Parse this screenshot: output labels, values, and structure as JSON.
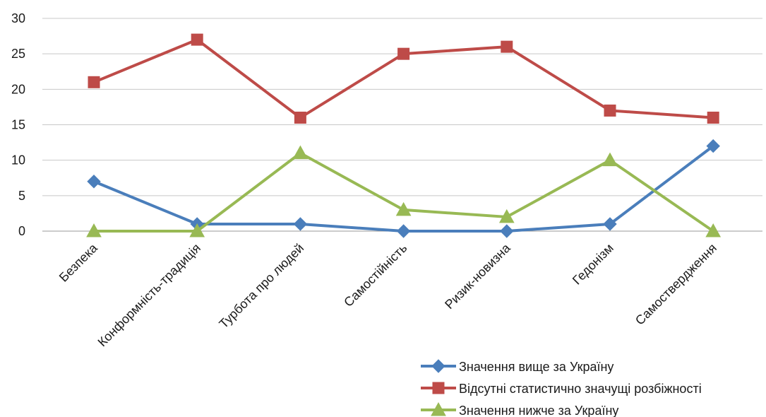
{
  "chart_data": {
    "type": "line",
    "title": "",
    "xlabel": "",
    "ylabel": "",
    "categories": [
      "Безпека",
      "Конформність-традиція",
      "Турбота про людей",
      "Самостійність",
      "Ризик-новизна",
      "Гедонізм",
      "Самоствердження"
    ],
    "ylim": [
      0,
      30
    ],
    "yticks": [
      0,
      5,
      10,
      15,
      20,
      25,
      30
    ],
    "grid": true,
    "legend_position": "bottom-right",
    "series": [
      {
        "name": "Значення вище за Україну",
        "values": [
          7,
          1,
          1,
          0,
          0,
          1,
          12
        ],
        "color": "#4a7ebb",
        "marker": "diamond"
      },
      {
        "name": "Відсутні статистично значущі розбіжності",
        "values": [
          21,
          27,
          16,
          25,
          26,
          17,
          16
        ],
        "color": "#be4b48",
        "marker": "square"
      },
      {
        "name": "Значення нижче за Україну",
        "values": [
          0,
          0,
          11,
          3,
          2,
          10,
          0
        ],
        "color": "#98b954",
        "marker": "triangle"
      }
    ]
  }
}
